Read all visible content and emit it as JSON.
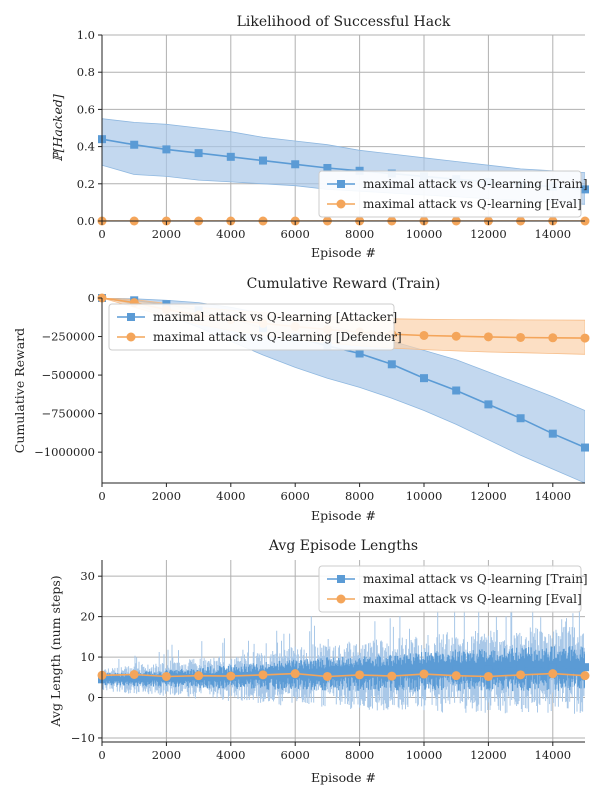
{
  "colors": {
    "train": "#5b9bd5",
    "train_band": "#a9c8e8",
    "eval": "#f4a55a",
    "eval_band": "#fbd2ab",
    "grid": "#b0b0b0"
  },
  "chart_data": [
    {
      "type": "line",
      "title": "Likelihood of Successful Hack",
      "xlabel": "Episode #",
      "ylabel": "ℙ[Hacked]",
      "xlim": [
        0,
        15000
      ],
      "ylim": [
        0,
        1.0
      ],
      "xticks": [
        "0",
        "2000",
        "4000",
        "6000",
        "8000",
        "10000",
        "12000",
        "14000"
      ],
      "yticks": [
        "0.0",
        "0.2",
        "0.4",
        "0.6",
        "0.8",
        "1.0"
      ],
      "grid": true,
      "legend_position": "lower-right",
      "series": [
        {
          "name": "maximal attack vs Q-learning [Train]",
          "marker": "square",
          "x": [
            0,
            1000,
            2000,
            3000,
            4000,
            5000,
            6000,
            7000,
            8000,
            9000,
            10000,
            11000,
            12000,
            13000,
            14000,
            15000
          ],
          "y": [
            0.44,
            0.41,
            0.385,
            0.365,
            0.345,
            0.325,
            0.305,
            0.285,
            0.27,
            0.255,
            0.24,
            0.225,
            0.21,
            0.195,
            0.185,
            0.17
          ],
          "lower": [
            0.3,
            0.25,
            0.24,
            0.22,
            0.21,
            0.2,
            0.19,
            0.17,
            0.16,
            0.15,
            0.14,
            0.13,
            0.12,
            0.11,
            0.1,
            0.09
          ],
          "upper": [
            0.55,
            0.53,
            0.52,
            0.5,
            0.48,
            0.45,
            0.43,
            0.41,
            0.38,
            0.36,
            0.34,
            0.32,
            0.3,
            0.28,
            0.27,
            0.26
          ]
        },
        {
          "name": "maximal attack vs Q-learning [Eval]",
          "marker": "circle",
          "x": [
            0,
            1000,
            2000,
            3000,
            4000,
            5000,
            6000,
            7000,
            8000,
            9000,
            10000,
            11000,
            12000,
            13000,
            14000,
            15000
          ],
          "y": [
            0,
            0,
            0,
            0,
            0,
            0,
            0,
            0,
            0,
            0,
            0,
            0,
            0,
            0,
            0,
            0
          ]
        }
      ]
    },
    {
      "type": "line",
      "title": "Cumulative Reward (Train)",
      "xlabel": "Episode #",
      "ylabel": "Cumulative Reward",
      "xlim": [
        0,
        15000
      ],
      "ylim": [
        -1200000,
        0
      ],
      "xticks": [
        "0",
        "2000",
        "4000",
        "6000",
        "8000",
        "10000",
        "12000",
        "14000"
      ],
      "yticks": [
        "0",
        "−250000",
        "−500000",
        "−750000",
        "−1000000"
      ],
      "grid": false,
      "legend_position": "upper-left",
      "series": [
        {
          "name": "maximal attack vs Q-learning [Attacker]",
          "marker": "square",
          "x": [
            0,
            1000,
            2000,
            3000,
            4000,
            5000,
            6000,
            7000,
            8000,
            9000,
            10000,
            11000,
            12000,
            13000,
            14000,
            15000
          ],
          "y": [
            0,
            -15000,
            -40000,
            -80000,
            -135000,
            -195000,
            -255000,
            -310000,
            -360000,
            -430000,
            -520000,
            -600000,
            -690000,
            -780000,
            -880000,
            -970000
          ],
          "lower": [
            0,
            -40000,
            -110000,
            -190000,
            -280000,
            -370000,
            -450000,
            -520000,
            -580000,
            -650000,
            -730000,
            -820000,
            -920000,
            -1020000,
            -1110000,
            -1200000
          ],
          "upper": [
            0,
            -5000,
            -15000,
            -30000,
            -60000,
            -100000,
            -140000,
            -180000,
            -220000,
            -280000,
            -340000,
            -400000,
            -480000,
            -560000,
            -640000,
            -730000
          ]
        },
        {
          "name": "maximal attack vs Q-learning [Defender]",
          "marker": "circle",
          "x": [
            0,
            1000,
            2000,
            3000,
            4000,
            5000,
            6000,
            7000,
            8000,
            9000,
            10000,
            11000,
            12000,
            13000,
            14000,
            15000
          ],
          "y": [
            0,
            -30000,
            -75000,
            -110000,
            -140000,
            -165000,
            -185000,
            -205000,
            -220000,
            -235000,
            -243000,
            -248000,
            -252000,
            -256000,
            -258000,
            -260000
          ],
          "lower": [
            0,
            -60000,
            -120000,
            -170000,
            -210000,
            -240000,
            -270000,
            -290000,
            -310000,
            -325000,
            -335000,
            -343000,
            -350000,
            -355000,
            -360000,
            -365000
          ],
          "upper": [
            0,
            -10000,
            -35000,
            -60000,
            -80000,
            -95000,
            -110000,
            -120000,
            -130000,
            -135000,
            -138000,
            -140000,
            -141000,
            -142000,
            -143000,
            -144000
          ]
        }
      ]
    },
    {
      "type": "line",
      "title": "Avg Episode Lengths",
      "xlabel": "Episode #",
      "ylabel": "Avg Length (num steps)",
      "xlim": [
        0,
        15000
      ],
      "ylim": [
        -11,
        34
      ],
      "xticks": [
        "0",
        "2000",
        "4000",
        "6000",
        "8000",
        "10000",
        "12000",
        "14000"
      ],
      "yticks": [
        "−10",
        "0",
        "10",
        "20",
        "30"
      ],
      "grid": true,
      "legend_position": "upper-right",
      "series": [
        {
          "name": "maximal attack vs Q-learning [Train]",
          "marker": "square",
          "x": [
            0,
            1000,
            2000,
            3000,
            4000,
            5000,
            6000,
            7000,
            8000,
            9000,
            10000,
            11000,
            12000,
            13000,
            14000,
            15000
          ],
          "y": [
            4.5,
            4.7,
            4.8,
            5.0,
            5.2,
            5.5,
            5.8,
            6.0,
            6.2,
            6.5,
            6.7,
            6.9,
            7.0,
            7.2,
            7.3,
            7.5
          ],
          "lower": [
            2.0,
            1.5,
            1.0,
            0.5,
            0.0,
            -0.5,
            -1.0,
            -1.2,
            -1.5,
            -1.8,
            -2.0,
            -2.0,
            -2.0,
            -2.2,
            -2.2,
            -2.3
          ],
          "upper": [
            7.5,
            8.0,
            9.0,
            10.0,
            11.0,
            12.0,
            13.0,
            14.0,
            14.5,
            15.0,
            16.0,
            17.0,
            17.0,
            18.0,
            18.0,
            18.5
          ]
        },
        {
          "name": "maximal attack vs Q-learning [Eval]",
          "marker": "circle",
          "x": [
            0,
            1000,
            2000,
            3000,
            4000,
            5000,
            6000,
            7000,
            8000,
            9000,
            10000,
            11000,
            12000,
            13000,
            14000,
            15000
          ],
          "y": [
            5.5,
            5.7,
            5.2,
            5.4,
            5.3,
            5.6,
            5.9,
            5.2,
            5.6,
            5.3,
            5.8,
            5.4,
            5.2,
            5.6,
            5.9,
            5.4
          ]
        }
      ]
    }
  ]
}
